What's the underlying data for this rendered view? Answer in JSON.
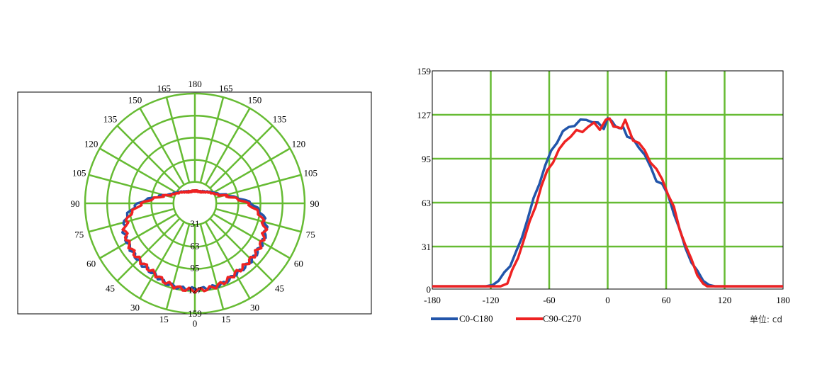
{
  "colors": {
    "grid": "#66bb33",
    "c0": "#2255aa",
    "c90": "#ee2222"
  },
  "chart_data": [
    {
      "type": "polar",
      "title": "",
      "angle_labels": [
        "0",
        "15",
        "30",
        "45",
        "60",
        "75",
        "90",
        "105",
        "120",
        "135",
        "150",
        "165",
        "180"
      ],
      "radial_ticks": [
        31,
        63,
        95,
        127,
        159
      ],
      "rmax": 159,
      "series": [
        {
          "name": "C0-C180",
          "color_key": "c0",
          "angles": [
            0,
            10,
            20,
            30,
            40,
            50,
            60,
            70,
            80,
            90,
            100,
            110,
            120,
            130,
            140,
            150,
            160,
            170,
            180
          ],
          "values": [
            124,
            124,
            123,
            118,
            117,
            115,
            113,
            110,
            100,
            82,
            55,
            38,
            31,
            26,
            22,
            20,
            18,
            18,
            18
          ]
        },
        {
          "name": "C90-C270",
          "color_key": "c90",
          "angles": [
            0,
            10,
            20,
            30,
            40,
            50,
            60,
            70,
            80,
            90,
            100,
            110,
            120,
            130,
            140,
            150,
            160,
            170,
            180
          ],
          "values": [
            126,
            125,
            122,
            117,
            115,
            114,
            112,
            108,
            96,
            76,
            52,
            36,
            29,
            25,
            21,
            19,
            18,
            18,
            18
          ]
        }
      ]
    },
    {
      "type": "line",
      "title": "",
      "xlim": [
        -180,
        180
      ],
      "ylim": [
        0,
        159
      ],
      "xticks": [
        "-180",
        "-120",
        "-60",
        "0",
        "60",
        "120",
        "180"
      ],
      "yticks": [
        "0",
        "31",
        "63",
        "95",
        "127",
        "159"
      ],
      "unit_label": "单位: cd",
      "series": [
        {
          "name": "C0-C180",
          "color_key": "c0",
          "x": [
            -180,
            -125,
            -118,
            -112,
            -106,
            -100,
            -94,
            -88,
            -82,
            -76,
            -70,
            -64,
            -58,
            -52,
            -46,
            -40,
            -34,
            -28,
            -22,
            -16,
            -10,
            -4,
            0,
            4,
            8,
            12,
            16,
            20,
            26,
            32,
            38,
            44,
            50,
            56,
            62,
            68,
            74,
            80,
            86,
            92,
            98,
            104,
            110,
            118,
            126,
            180
          ],
          "y": [
            2,
            2,
            3,
            6,
            12,
            18,
            26,
            38,
            52,
            65,
            78,
            90,
            100,
            108,
            114,
            118,
            120,
            122,
            124,
            122,
            120,
            118,
            124,
            122,
            120,
            116,
            118,
            112,
            108,
            104,
            98,
            88,
            80,
            76,
            68,
            56,
            42,
            30,
            20,
            12,
            6,
            3,
            2,
            2,
            2,
            2
          ]
        },
        {
          "name": "C90-C270",
          "color_key": "c90",
          "x": [
            -180,
            -110,
            -103,
            -98,
            -92,
            -86,
            -80,
            -74,
            -68,
            -62,
            -56,
            -50,
            -44,
            -38,
            -32,
            -26,
            -20,
            -14,
            -8,
            -2,
            2,
            6,
            10,
            14,
            18,
            22,
            26,
            32,
            38,
            44,
            50,
            56,
            62,
            68,
            74,
            80,
            86,
            92,
            98,
            102,
            106,
            180
          ],
          "y": [
            2,
            2,
            4,
            12,
            24,
            36,
            48,
            62,
            74,
            86,
            94,
            100,
            108,
            112,
            114,
            116,
            118,
            120,
            118,
            122,
            124,
            120,
            116,
            118,
            124,
            114,
            110,
            106,
            100,
            94,
            86,
            80,
            70,
            58,
            44,
            32,
            20,
            10,
            4,
            2,
            2,
            2
          ]
        }
      ]
    }
  ]
}
